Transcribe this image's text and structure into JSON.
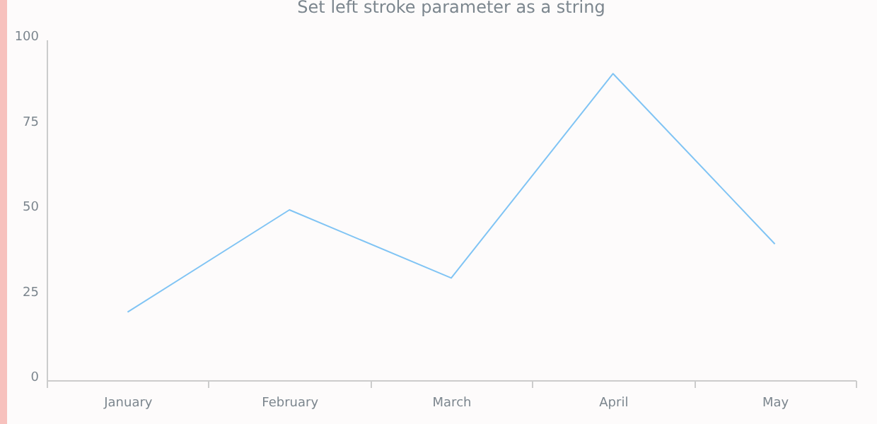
{
  "chart_data": {
    "type": "line",
    "title": "Set left stroke parameter as a string",
    "categories": [
      "January",
      "February",
      "March",
      "April",
      "May"
    ],
    "series": [
      {
        "color": "#80c4f4",
        "values": [
          20,
          50,
          30,
          90,
          40
        ]
      }
    ],
    "ylim": [
      0,
      100
    ],
    "yticks": [
      0,
      25,
      50,
      75,
      100
    ],
    "grid": false,
    "legend": false,
    "marker": "none",
    "line_style": "solid"
  }
}
